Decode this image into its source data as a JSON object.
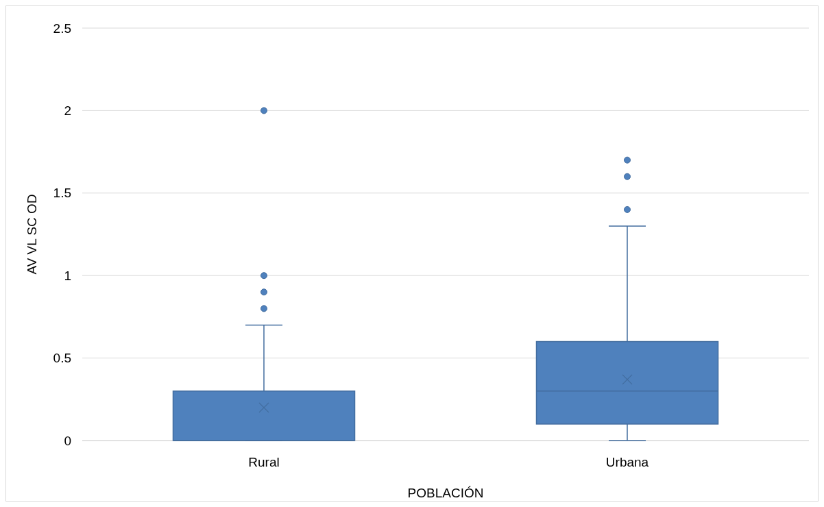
{
  "chart_data": {
    "type": "box",
    "xlabel": "POBLACIÓN",
    "ylabel": "AV VL SC OD",
    "categories": [
      "Rural",
      "Urbana"
    ],
    "color": "#4f81bd",
    "ylim": [
      0,
      2.5
    ],
    "yticks": [
      0,
      0.5,
      1,
      1.5,
      2,
      2.5
    ],
    "grid": "y",
    "boxes": [
      {
        "low": 0,
        "q1": 0,
        "median": 0,
        "q3": 0.3,
        "high": 0.7,
        "mean": 0.2,
        "outliers": [
          0.8,
          0.9,
          1,
          2
        ]
      },
      {
        "low": 0,
        "q1": 0.1,
        "median": 0.3,
        "q3": 0.6,
        "high": 1.3,
        "mean": 0.37,
        "outliers": [
          1.4,
          1.6,
          1.7
        ]
      }
    ]
  }
}
